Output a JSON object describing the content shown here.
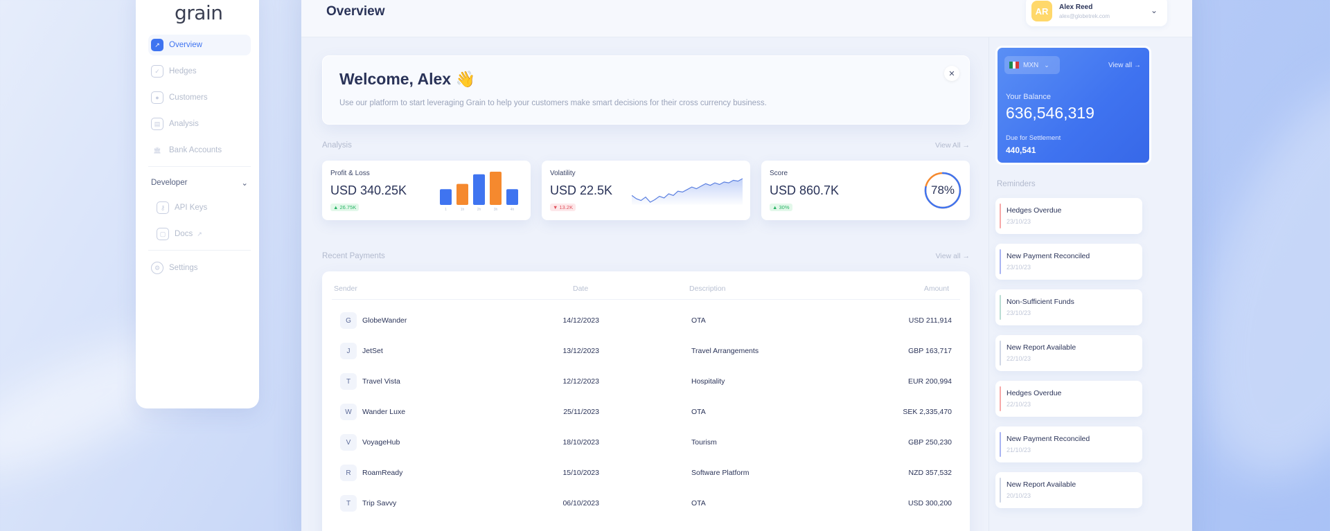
{
  "app": {
    "logo": "grain",
    "page_title": "Overview"
  },
  "colors": {
    "accent": "#3f74f0",
    "orange": "#f5892e",
    "up": "#28b465",
    "down": "#e0505a"
  },
  "sidebar": {
    "items": [
      {
        "label": "Overview",
        "icon": "chart-icon"
      },
      {
        "label": "Hedges",
        "icon": "shield-icon"
      },
      {
        "label": "Customers",
        "icon": "user-icon"
      },
      {
        "label": "Analysis",
        "icon": "analysis-icon"
      },
      {
        "label": "Bank Accounts",
        "icon": "bank-icon"
      }
    ],
    "developer": {
      "label": "Developer",
      "items": [
        {
          "label": "API Keys",
          "icon": "key-icon"
        },
        {
          "label": "Docs",
          "icon": "docs-icon"
        }
      ]
    },
    "settings": {
      "label": "Settings",
      "icon": "gear-icon"
    }
  },
  "user": {
    "initials": "AR",
    "name": "Alex Reed",
    "email": "alex@globetrek.com"
  },
  "welcome": {
    "title": "Welcome, Alex 👋",
    "subtitle": "Use our platform to start leveraging Grain to help your customers make smart decisions for their cross currency business.",
    "close": "✕"
  },
  "analysis": {
    "label": "Analysis",
    "view_all": "View All →",
    "cards": {
      "pnl": {
        "label": "Profit & Loss",
        "value": "USD 340.25K",
        "badge": "▲ 26.75K"
      },
      "vol": {
        "label": "Volatility",
        "value": "USD 22.5K",
        "badge": "▼ 13.2K"
      },
      "score": {
        "label": "Score",
        "value": "USD 860.7K",
        "badge": "▲ 30%",
        "percent": "78%"
      }
    }
  },
  "chart_data": [
    {
      "type": "bar",
      "categories": [
        "1",
        "1h",
        "2h",
        "3h",
        "4h"
      ],
      "values": [
        18,
        24,
        35,
        38,
        18
      ],
      "colors": [
        "#3f74f0",
        "#f5892e",
        "#3f74f0",
        "#f5892e",
        "#3f74f0"
      ]
    },
    {
      "type": "area",
      "values": [
        20,
        16,
        14,
        18,
        12,
        15,
        19,
        17,
        22,
        20,
        25,
        24,
        27,
        30,
        28,
        31,
        34,
        32,
        35,
        33,
        36,
        35,
        38,
        37,
        40
      ]
    },
    {
      "type": "pie",
      "values": [
        78
      ],
      "labels": [
        "78%"
      ]
    }
  ],
  "payments": {
    "label": "Recent Payments",
    "view_all": "View all →",
    "headers": {
      "sender": "Sender",
      "date": "Date",
      "description": "Description",
      "amount": "Amount"
    },
    "rows": [
      {
        "letter": "G",
        "sender": "GlobeWander",
        "date": "14/12/2023",
        "description": "OTA",
        "amount": "USD 211,914"
      },
      {
        "letter": "J",
        "sender": "JetSet",
        "date": "13/12/2023",
        "description": "Travel Arrangements",
        "amount": "GBP 163,717"
      },
      {
        "letter": "T",
        "sender": "Travel Vista",
        "date": "12/12/2023",
        "description": "Hospitality",
        "amount": "EUR 200,994"
      },
      {
        "letter": "W",
        "sender": "Wander Luxe",
        "date": "25/11/2023",
        "description": "OTA",
        "amount": "SEK 2,335,470"
      },
      {
        "letter": "V",
        "sender": "VoyageHub",
        "date": "18/10/2023",
        "description": "Tourism",
        "amount": "GBP 250,230"
      },
      {
        "letter": "R",
        "sender": "RoamReady",
        "date": "15/10/2023",
        "description": "Software Platform",
        "amount": "NZD 357,532"
      },
      {
        "letter": "T",
        "sender": "Trip Savvy",
        "date": "06/10/2023",
        "description": "OTA",
        "amount": "USD 300,200"
      }
    ]
  },
  "balance": {
    "currency": "MXN",
    "view_all": "View all →",
    "label": "Your Balance",
    "value": "636,546,319",
    "due_label": "Due for Settlement",
    "due_value": "440,541"
  },
  "reminders": {
    "label": "Reminders",
    "items": [
      {
        "title": "Hedges Overdue",
        "date": "23/10/23",
        "color": "#f6a8a8"
      },
      {
        "title": "New Payment Reconciled",
        "date": "23/10/23",
        "color": "#a9b4f2"
      },
      {
        "title": "Non-Sufficient Funds",
        "date": "23/10/23",
        "color": "#b9dcd3"
      },
      {
        "title": "New Report Available",
        "date": "22/10/23",
        "color": "#cfd6e6"
      },
      {
        "title": "Hedges Overdue",
        "date": "22/10/23",
        "color": "#f6a8a8"
      },
      {
        "title": "New Payment Reconciled",
        "date": "21/10/23",
        "color": "#a9b4f2"
      },
      {
        "title": "New Report Available",
        "date": "20/10/23",
        "color": "#cfd6e6"
      }
    ]
  }
}
